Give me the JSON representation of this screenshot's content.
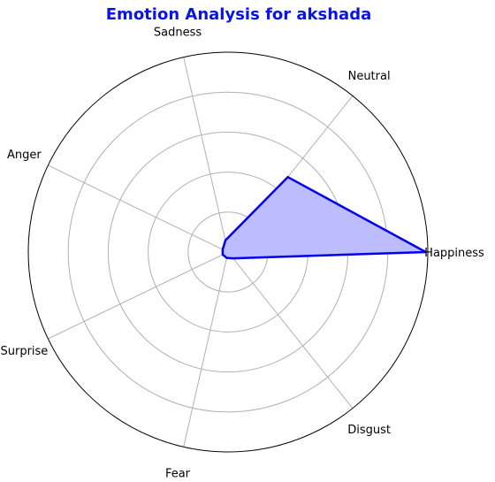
{
  "chart_data": {
    "type": "radar",
    "title": "Emotion Analysis for akshada",
    "categories": [
      "Happiness",
      "Neutral",
      "Sadness",
      "Anger",
      "Surprise",
      "Fear",
      "Disgust"
    ],
    "series": [
      {
        "values": [
          0.99,
          0.48,
          0.06,
          0.03,
          0.03,
          0.03,
          0.04
        ]
      }
    ],
    "rlim": [
      0,
      1
    ],
    "rings": [
      0.2,
      0.4,
      0.6,
      0.8,
      1.0
    ],
    "grid": true,
    "line_color": "#0000ee",
    "fill_color": "#bcbcff",
    "title_color": "#0a14e6"
  }
}
